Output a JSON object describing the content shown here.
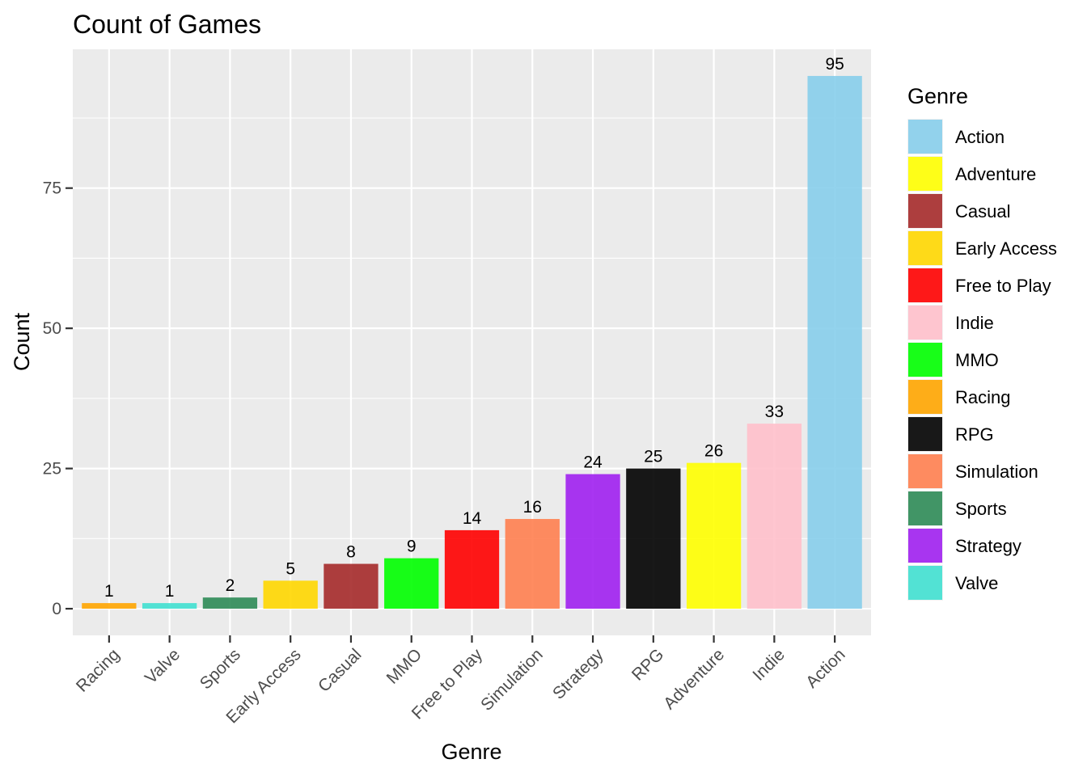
{
  "chart_data": {
    "type": "bar",
    "title": "Count of Games",
    "xlabel": "Genre",
    "ylabel": "Count",
    "categories": [
      "Racing",
      "Valve",
      "Sports",
      "Early Access",
      "Casual",
      "MMO",
      "Free to Play",
      "Simulation",
      "Strategy",
      "RPG",
      "Adventure",
      "Indie",
      "Action"
    ],
    "values": [
      1,
      1,
      2,
      5,
      8,
      9,
      14,
      16,
      24,
      25,
      26,
      33,
      95
    ],
    "bar_colors": [
      "#FFA500",
      "#40E0D0",
      "#2E8B57",
      "#FFD700",
      "#A52A2A",
      "#00FF00",
      "#FF0000",
      "#FF7F50",
      "#A020F0",
      "#000000",
      "#FFFF00",
      "#FFC0CB",
      "#87CEEB"
    ],
    "ylim": [
      -4.75,
      99.75
    ],
    "y_ticks": [
      0,
      25,
      50,
      75
    ],
    "grid": true,
    "data_labels": true,
    "legend": {
      "title": "Genre",
      "placement": "right",
      "entries": [
        {
          "label": "Action",
          "color": "#87CEEB"
        },
        {
          "label": "Adventure",
          "color": "#FFFF00"
        },
        {
          "label": "Casual",
          "color": "#A52A2A"
        },
        {
          "label": "Early Access",
          "color": "#FFD700"
        },
        {
          "label": "Free to Play",
          "color": "#FF0000"
        },
        {
          "label": "Indie",
          "color": "#FFC0CB"
        },
        {
          "label": "MMO",
          "color": "#00FF00"
        },
        {
          "label": "Racing",
          "color": "#FFA500"
        },
        {
          "label": "RPG",
          "color": "#000000"
        },
        {
          "label": "Simulation",
          "color": "#FF7F50"
        },
        {
          "label": "Sports",
          "color": "#2E8B57"
        },
        {
          "label": "Strategy",
          "color": "#A020F0"
        },
        {
          "label": "Valve",
          "color": "#40E0D0"
        }
      ]
    },
    "panel_background": "#EBEBEB",
    "gridline_color": "#FFFFFF"
  }
}
